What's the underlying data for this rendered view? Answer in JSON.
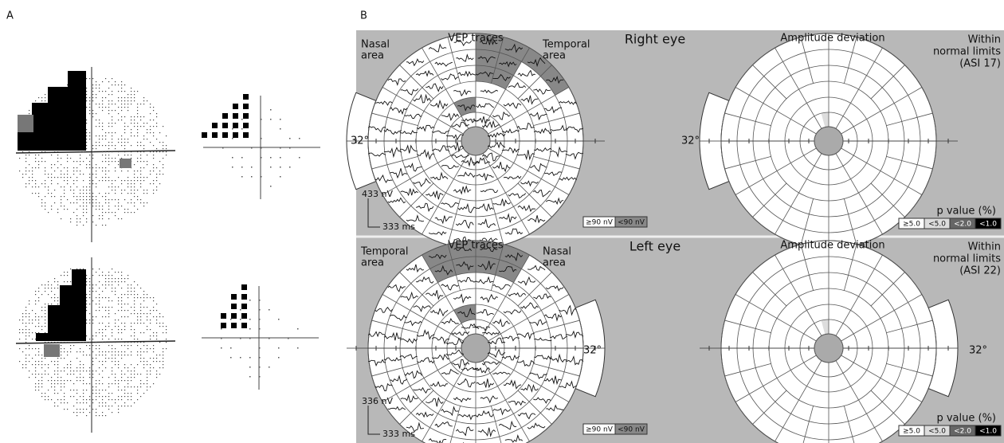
{
  "panel_a": {
    "label": "A"
  },
  "panel_b": {
    "label": "B",
    "rows": [
      {
        "vep_title": "VEP traces",
        "left_area": [
          "Nasal",
          "area"
        ],
        "right_area": [
          "Temporal",
          "area"
        ],
        "eye": "Right eye",
        "eccentricity": "32°",
        "amp_scale": "433 nV",
        "time_scale": "333 ms",
        "vep_legend": [
          "≥90 nV",
          "<90 nV"
        ],
        "deviation_title": "Amplitude deviation",
        "verdict": [
          "Within",
          "normal limits",
          "(ASI 17)"
        ],
        "p_title": "p value (%)",
        "p_legend": [
          "≥5.0",
          "<5.0",
          "<2.0",
          "<1.0"
        ]
      },
      {
        "vep_title": "VEP traces",
        "left_area": [
          "Temporal",
          "area"
        ],
        "right_area": [
          "Nasal",
          "area"
        ],
        "eye": "Left eye",
        "eccentricity": "32°",
        "amp_scale": "336 nV",
        "time_scale": "333 ms",
        "vep_legend": [
          "≥90 nV",
          "<90 nV"
        ],
        "deviation_title": "Amplitude deviation",
        "verdict": [
          "Within",
          "normal limits",
          "(ASI 22)"
        ],
        "p_title": "p value (%)",
        "p_legend": [
          "≥5.0",
          "<5.0",
          "<2.0",
          "<1.0"
        ]
      }
    ]
  }
}
